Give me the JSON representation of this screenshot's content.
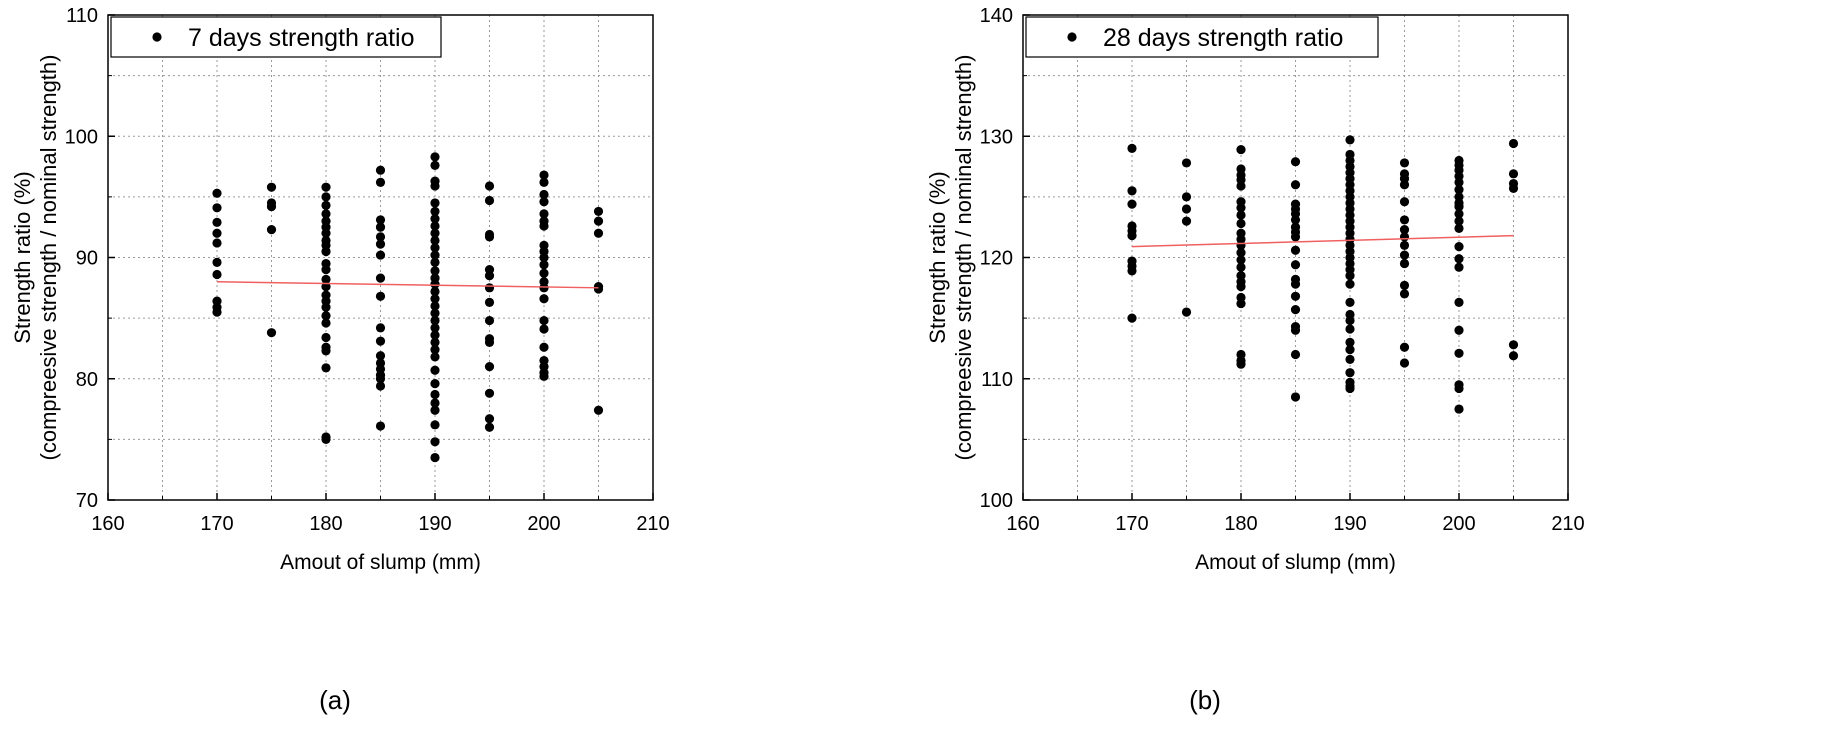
{
  "chart_data": [
    {
      "type": "scatter",
      "caption": "(a)",
      "xlabel": "Amout of slump (mm)",
      "ylabel": "Strength ratio (%)",
      "ylabel2": "(compreesive strength / nominal strength)",
      "xlim": [
        160,
        210
      ],
      "ylim": [
        70,
        110
      ],
      "xticks": [
        "160",
        "170",
        "180",
        "190",
        "200",
        "210"
      ],
      "yticks": [
        "70",
        "80",
        "90",
        "100",
        "110"
      ],
      "grid": true,
      "legend_position": "top-left",
      "trendline": {
        "x": [
          170,
          205
        ],
        "y": [
          88.0,
          87.5
        ]
      },
      "series": [
        {
          "name": "7 days strength ratio",
          "points": [
            [
              170,
              95.3
            ],
            [
              170,
              94.1
            ],
            [
              170,
              92.9
            ],
            [
              170,
              92.0
            ],
            [
              170,
              91.2
            ],
            [
              170,
              89.6
            ],
            [
              170,
              88.6
            ],
            [
              170,
              86.4
            ],
            [
              170,
              85.9
            ],
            [
              170,
              85.5
            ],
            [
              175,
              95.8
            ],
            [
              175,
              94.5
            ],
            [
              175,
              94.2
            ],
            [
              175,
              92.3
            ],
            [
              175,
              83.8
            ],
            [
              180,
              95.8
            ],
            [
              180,
              95.0
            ],
            [
              180,
              94.3
            ],
            [
              180,
              93.6
            ],
            [
              180,
              93.0
            ],
            [
              180,
              92.5
            ],
            [
              180,
              92.0
            ],
            [
              180,
              91.4
            ],
            [
              180,
              91.0
            ],
            [
              180,
              90.5
            ],
            [
              180,
              89.5
            ],
            [
              180,
              89.0
            ],
            [
              180,
              88.2
            ],
            [
              180,
              87.6
            ],
            [
              180,
              86.9
            ],
            [
              180,
              86.4
            ],
            [
              180,
              85.9
            ],
            [
              180,
              85.2
            ],
            [
              180,
              84.6
            ],
            [
              180,
              83.4
            ],
            [
              180,
              82.6
            ],
            [
              180,
              82.3
            ],
            [
              180,
              80.9
            ],
            [
              180,
              75.2
            ],
            [
              180,
              75.0
            ],
            [
              185,
              97.2
            ],
            [
              185,
              96.2
            ],
            [
              185,
              93.1
            ],
            [
              185,
              92.5
            ],
            [
              185,
              91.7
            ],
            [
              185,
              91.1
            ],
            [
              185,
              90.2
            ],
            [
              185,
              88.3
            ],
            [
              185,
              86.8
            ],
            [
              185,
              84.2
            ],
            [
              185,
              83.1
            ],
            [
              185,
              81.9
            ],
            [
              185,
              81.3
            ],
            [
              185,
              80.8
            ],
            [
              185,
              80.3
            ],
            [
              185,
              80.0
            ],
            [
              185,
              79.4
            ],
            [
              185,
              76.1
            ],
            [
              190,
              98.3
            ],
            [
              190,
              97.6
            ],
            [
              190,
              96.3
            ],
            [
              190,
              95.9
            ],
            [
              190,
              94.5
            ],
            [
              190,
              93.8
            ],
            [
              190,
              93.2
            ],
            [
              190,
              92.6
            ],
            [
              190,
              92.0
            ],
            [
              190,
              91.4
            ],
            [
              190,
              90.8
            ],
            [
              190,
              90.2
            ],
            [
              190,
              89.6
            ],
            [
              190,
              88.9
            ],
            [
              190,
              88.3
            ],
            [
              190,
              87.8
            ],
            [
              190,
              87.2
            ],
            [
              190,
              86.6
            ],
            [
              190,
              86.0
            ],
            [
              190,
              85.4
            ],
            [
              190,
              84.8
            ],
            [
              190,
              84.2
            ],
            [
              190,
              83.6
            ],
            [
              190,
              83.0
            ],
            [
              190,
              82.4
            ],
            [
              190,
              81.8
            ],
            [
              190,
              80.7
            ],
            [
              190,
              79.6
            ],
            [
              190,
              78.7
            ],
            [
              190,
              78.0
            ],
            [
              190,
              77.4
            ],
            [
              190,
              76.2
            ],
            [
              190,
              74.8
            ],
            [
              190,
              73.5
            ],
            [
              195,
              95.9
            ],
            [
              195,
              94.7
            ],
            [
              195,
              91.9
            ],
            [
              195,
              91.7
            ],
            [
              195,
              89.0
            ],
            [
              195,
              88.5
            ],
            [
              195,
              87.5
            ],
            [
              195,
              86.3
            ],
            [
              195,
              84.8
            ],
            [
              195,
              83.3
            ],
            [
              195,
              83.0
            ],
            [
              195,
              81.0
            ],
            [
              195,
              78.8
            ],
            [
              195,
              76.7
            ],
            [
              195,
              76.0
            ],
            [
              200,
              96.8
            ],
            [
              200,
              96.2
            ],
            [
              200,
              95.2
            ],
            [
              200,
              94.6
            ],
            [
              200,
              93.6
            ],
            [
              200,
              93.0
            ],
            [
              200,
              92.6
            ],
            [
              200,
              91.0
            ],
            [
              200,
              90.5
            ],
            [
              200,
              90.0
            ],
            [
              200,
              89.4
            ],
            [
              200,
              88.7
            ],
            [
              200,
              88.0
            ],
            [
              200,
              87.5
            ],
            [
              200,
              86.6
            ],
            [
              200,
              84.8
            ],
            [
              200,
              84.1
            ],
            [
              200,
              82.6
            ],
            [
              200,
              81.5
            ],
            [
              200,
              81.0
            ],
            [
              200,
              80.5
            ],
            [
              200,
              80.2
            ],
            [
              205,
              93.8
            ],
            [
              205,
              93.0
            ],
            [
              205,
              92.0
            ],
            [
              205,
              87.6
            ],
            [
              205,
              87.4
            ],
            [
              205,
              77.4
            ]
          ]
        }
      ]
    },
    {
      "type": "scatter",
      "caption": "(b)",
      "xlabel": "Amout of slump (mm)",
      "ylabel": "Strength ratio (%)",
      "ylabel2": "(compreesive strength / nominal strength)",
      "xlim": [
        160,
        210
      ],
      "ylim": [
        100,
        140
      ],
      "xticks": [
        "160",
        "170",
        "180",
        "190",
        "200",
        "210"
      ],
      "yticks": [
        "100",
        "110",
        "120",
        "130",
        "140"
      ],
      "grid": true,
      "legend_position": "top-left",
      "trendline": {
        "x": [
          170,
          205
        ],
        "y": [
          120.9,
          121.8
        ]
      },
      "series": [
        {
          "name": "28 days strength ratio",
          "points": [
            [
              170,
              129.0
            ],
            [
              170,
              125.5
            ],
            [
              170,
              124.4
            ],
            [
              170,
              122.6
            ],
            [
              170,
              122.2
            ],
            [
              170,
              121.8
            ],
            [
              170,
              119.7
            ],
            [
              170,
              119.3
            ],
            [
              170,
              118.9
            ],
            [
              170,
              115.0
            ],
            [
              175,
              127.8
            ],
            [
              175,
              125.0
            ],
            [
              175,
              124.0
            ],
            [
              175,
              123.0
            ],
            [
              175,
              115.5
            ],
            [
              180,
              128.9
            ],
            [
              180,
              127.3
            ],
            [
              180,
              126.8
            ],
            [
              180,
              126.4
            ],
            [
              180,
              125.9
            ],
            [
              180,
              124.6
            ],
            [
              180,
              124.1
            ],
            [
              180,
              123.5
            ],
            [
              180,
              122.8
            ],
            [
              180,
              122.0
            ],
            [
              180,
              121.5
            ],
            [
              180,
              121.0
            ],
            [
              180,
              120.4
            ],
            [
              180,
              119.8
            ],
            [
              180,
              119.2
            ],
            [
              180,
              118.5
            ],
            [
              180,
              118.0
            ],
            [
              180,
              117.6
            ],
            [
              180,
              116.7
            ],
            [
              180,
              116.2
            ],
            [
              180,
              112.0
            ],
            [
              180,
              111.5
            ],
            [
              180,
              111.2
            ],
            [
              185,
              127.9
            ],
            [
              185,
              126.0
            ],
            [
              185,
              124.4
            ],
            [
              185,
              124.0
            ],
            [
              185,
              123.6
            ],
            [
              185,
              123.1
            ],
            [
              185,
              122.5
            ],
            [
              185,
              122.1
            ],
            [
              185,
              121.7
            ],
            [
              185,
              120.6
            ],
            [
              185,
              119.4
            ],
            [
              185,
              118.2
            ],
            [
              185,
              117.8
            ],
            [
              185,
              116.8
            ],
            [
              185,
              115.7
            ],
            [
              185,
              114.0
            ],
            [
              185,
              114.3
            ],
            [
              185,
              112.0
            ],
            [
              185,
              108.5
            ],
            [
              190,
              129.7
            ],
            [
              190,
              128.5
            ],
            [
              190,
              128.0
            ],
            [
              190,
              127.5
            ],
            [
              190,
              127.0
            ],
            [
              190,
              126.5
            ],
            [
              190,
              126.0
            ],
            [
              190,
              125.5
            ],
            [
              190,
              125.0
            ],
            [
              190,
              124.5
            ],
            [
              190,
              124.0
            ],
            [
              190,
              123.5
            ],
            [
              190,
              123.0
            ],
            [
              190,
              122.5
            ],
            [
              190,
              122.0
            ],
            [
              190,
              121.5
            ],
            [
              190,
              121.0
            ],
            [
              190,
              120.5
            ],
            [
              190,
              120.0
            ],
            [
              190,
              119.5
            ],
            [
              190,
              119.0
            ],
            [
              190,
              118.5
            ],
            [
              190,
              117.8
            ],
            [
              190,
              116.3
            ],
            [
              190,
              115.3
            ],
            [
              190,
              114.8
            ],
            [
              190,
              114.1
            ],
            [
              190,
              113.0
            ],
            [
              190,
              112.4
            ],
            [
              190,
              111.6
            ],
            [
              190,
              110.5
            ],
            [
              190,
              109.7
            ],
            [
              190,
              109.4
            ],
            [
              190,
              109.2
            ],
            [
              195,
              127.8
            ],
            [
              195,
              126.9
            ],
            [
              195,
              126.5
            ],
            [
              195,
              126.0
            ],
            [
              195,
              124.6
            ],
            [
              195,
              123.1
            ],
            [
              195,
              122.3
            ],
            [
              195,
              121.7
            ],
            [
              195,
              121.0
            ],
            [
              195,
              120.2
            ],
            [
              195,
              119.5
            ],
            [
              195,
              117.7
            ],
            [
              195,
              117.0
            ],
            [
              195,
              112.6
            ],
            [
              195,
              111.3
            ],
            [
              200,
              128.0
            ],
            [
              200,
              127.6
            ],
            [
              200,
              127.2
            ],
            [
              200,
              126.7
            ],
            [
              200,
              126.2
            ],
            [
              200,
              125.6
            ],
            [
              200,
              125.0
            ],
            [
              200,
              124.5
            ],
            [
              200,
              124.2
            ],
            [
              200,
              123.6
            ],
            [
              200,
              123.0
            ],
            [
              200,
              122.4
            ],
            [
              200,
              120.9
            ],
            [
              200,
              119.9
            ],
            [
              200,
              119.2
            ],
            [
              200,
              116.3
            ],
            [
              200,
              114.0
            ],
            [
              200,
              112.1
            ],
            [
              200,
              109.5
            ],
            [
              200,
              109.2
            ],
            [
              200,
              107.5
            ],
            [
              205,
              129.4
            ],
            [
              205,
              126.9
            ],
            [
              205,
              126.1
            ],
            [
              205,
              125.7
            ],
            [
              205,
              112.8
            ],
            [
              205,
              111.9
            ]
          ]
        }
      ]
    }
  ]
}
